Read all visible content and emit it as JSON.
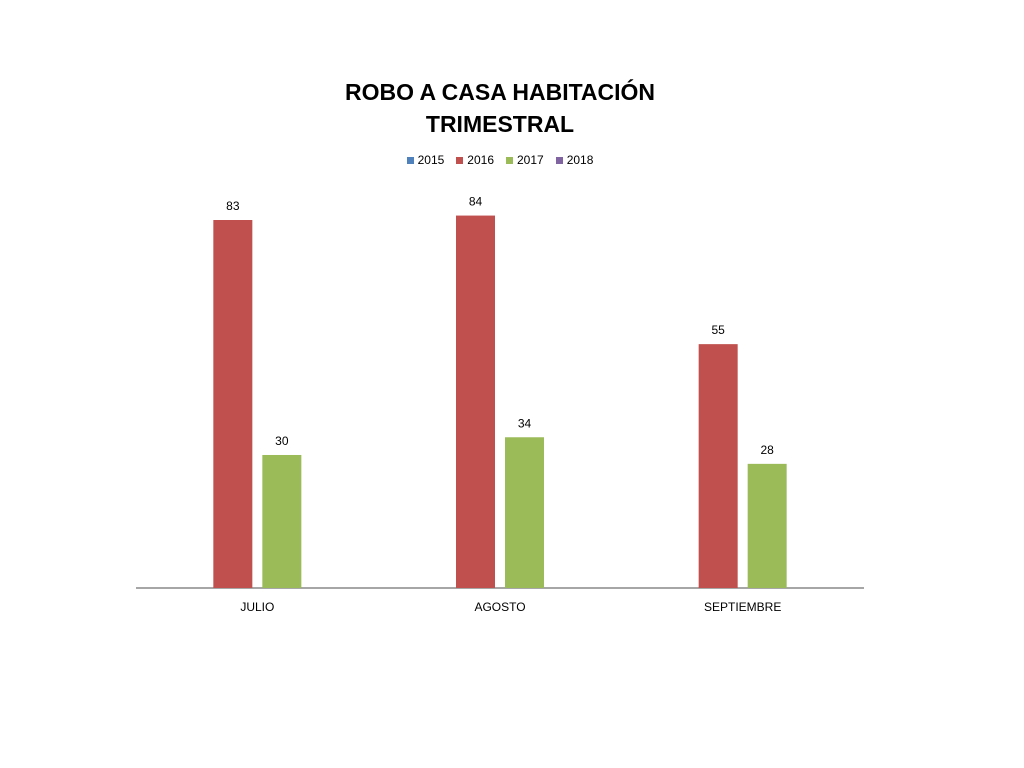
{
  "chart_data": {
    "type": "bar",
    "title": [
      "ROBO A CASA HABITACIÓN",
      "TRIMESTRAL"
    ],
    "xlabel": "",
    "ylabel": "",
    "ylim": [
      0,
      90
    ],
    "grid": false,
    "legend_position": "top",
    "categories": [
      "JULIO",
      "AGOSTO",
      "SEPTIEMBRE"
    ],
    "series": [
      {
        "name": "2015",
        "color": "#4F81BD",
        "values": [
          null,
          null,
          null
        ]
      },
      {
        "name": "2016",
        "color": "#C0504D",
        "values": [
          83,
          84,
          55
        ]
      },
      {
        "name": "2017",
        "color": "#9BBB59",
        "values": [
          30,
          34,
          28
        ]
      },
      {
        "name": "2018",
        "color": "#8064A2",
        "values": [
          null,
          null,
          null
        ]
      }
    ]
  }
}
